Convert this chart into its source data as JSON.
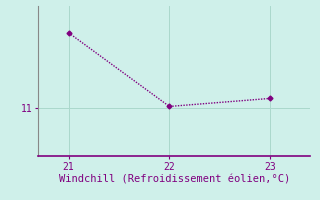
{
  "x": [
    21,
    22,
    23
  ],
  "y": [
    13.8,
    11.05,
    11.35
  ],
  "line_color": "#800080",
  "marker": "D",
  "marker_size": 2.5,
  "bg_color": "#cff0ea",
  "grid_color": "#aad8cc",
  "spine_color": "#888888",
  "xaxis_color": "#800080",
  "tick_color": "#800080",
  "label_color": "#800080",
  "xlabel": "Windchill (Refroidissement éolien,°C)",
  "xlabel_fontsize": 7.5,
  "ytick_labels": [
    "11"
  ],
  "ytick_values": [
    11
  ],
  "xtick_values": [
    21,
    22,
    23
  ],
  "xlim": [
    20.7,
    23.4
  ],
  "ylim": [
    9.2,
    14.8
  ],
  "figsize": [
    3.2,
    2.0
  ],
  "dpi": 100
}
